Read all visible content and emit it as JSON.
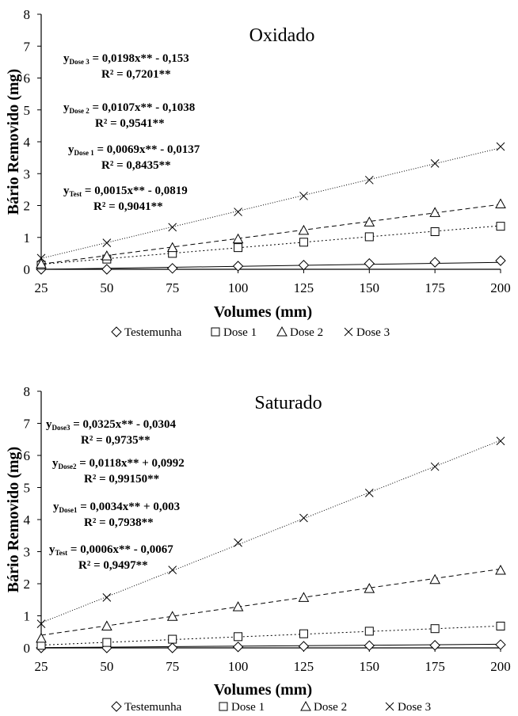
{
  "chart_data": [
    {
      "type": "line",
      "title": "Oxidado",
      "xlabel": "Volumes (mm)",
      "ylabel": "Bário Removido (mg)",
      "x": [
        25,
        50,
        75,
        100,
        125,
        150,
        175,
        200
      ],
      "ylim": [
        0,
        8
      ],
      "yticks": [
        "0",
        "1",
        "2",
        "3",
        "4",
        "5",
        "6",
        "7",
        "8"
      ],
      "xticks": [
        "25",
        "50",
        "75",
        "100",
        "125",
        "150",
        "175",
        "200"
      ],
      "series": [
        {
          "name": "Testemunha",
          "marker": "diamond",
          "dash": "",
          "values": [
            0.0,
            0.0,
            0.03,
            0.1,
            0.13,
            0.18,
            0.22,
            0.27
          ],
          "fit": [
            0.0015,
            -0.0819
          ]
        },
        {
          "name": "Dose 1",
          "marker": "square",
          "dash": "2,3",
          "values": [
            0.13,
            0.32,
            0.5,
            0.68,
            0.85,
            1.02,
            1.18,
            1.35
          ],
          "fit": [
            0.0069,
            -0.0137
          ]
        },
        {
          "name": "Dose 2",
          "marker": "triangle",
          "dash": "6,4",
          "values": [
            0.17,
            0.42,
            0.68,
            0.95,
            1.22,
            1.48,
            1.78,
            2.05
          ],
          "fit": [
            0.0107,
            -0.1038
          ]
        },
        {
          "name": "Dose 3",
          "marker": "x",
          "dash": "1,2",
          "values": [
            0.35,
            0.83,
            1.32,
            1.8,
            2.3,
            2.8,
            3.32,
            3.85
          ],
          "fit": [
            0.0198,
            -0.153
          ]
        }
      ],
      "equations": [
        {
          "sub": "Dose 3",
          "eq": " = 0,0198x** - 0,153",
          "r2": "R² = 0,7201**"
        },
        {
          "sub": "Dose 2",
          "eq": " = 0,0107x** - 0,1038",
          "r2": "R² = 0,9541**"
        },
        {
          "sub": "Dose 1",
          "eq": " = 0,0069x** - 0,0137",
          "r2": "R² = 0,8435**"
        },
        {
          "sub": "Test",
          "eq": " = 0,0015x** - 0,0819",
          "r2": "R² = 0,9041**"
        }
      ],
      "legend": [
        "Testemunha",
        "Dose 1",
        "Dose 2",
        "Dose 3"
      ],
      "grid": false,
      "legend_position": "bottom"
    },
    {
      "type": "line",
      "title": "Saturado",
      "xlabel": "Volumes (mm)",
      "ylabel": "Bário Removido (mg)",
      "x": [
        25,
        50,
        75,
        100,
        125,
        150,
        175,
        200
      ],
      "ylim": [
        0,
        8
      ],
      "yticks": [
        "0",
        "1",
        "2",
        "3",
        "4",
        "5",
        "6",
        "7",
        "8"
      ],
      "xticks": [
        "25",
        "50",
        "75",
        "100",
        "125",
        "150",
        "175",
        "200"
      ],
      "series": [
        {
          "name": "Testemunha",
          "marker": "diamond",
          "dash": "",
          "values": [
            0.0,
            0.0,
            0.0,
            0.03,
            0.05,
            0.07,
            0.08,
            0.1
          ],
          "fit": [
            0.0006,
            -0.0067
          ]
        },
        {
          "name": "Dose 1",
          "marker": "square",
          "dash": "2,3",
          "values": [
            0.08,
            0.17,
            0.27,
            0.35,
            0.44,
            0.52,
            0.6,
            0.68
          ],
          "fit": [
            0.0034,
            0.003
          ]
        },
        {
          "name": "Dose 2",
          "marker": "triangle",
          "dash": "6,4",
          "values": [
            0.3,
            0.68,
            0.98,
            1.28,
            1.57,
            1.85,
            2.13,
            2.42
          ],
          "fit": [
            0.0118,
            0.0992
          ]
        },
        {
          "name": "Dose 3",
          "marker": "x",
          "dash": "1,2",
          "values": [
            0.75,
            1.57,
            2.43,
            3.28,
            4.05,
            4.83,
            5.65,
            6.45
          ],
          "fit": [
            0.0325,
            -0.0304
          ]
        }
      ],
      "equations": [
        {
          "sub": "Dose3",
          "eq": " = 0,0325x** - 0,0304",
          "r2": "R² = 0,9735**"
        },
        {
          "sub": "Dose2",
          "eq": " = 0,0118x** + 0,0992",
          "r2": "R² = 0,99150**"
        },
        {
          "sub": "Dose1",
          "eq": " = 0,0034x** + 0,003",
          "r2": "R² = 0,7938**"
        },
        {
          "sub": "Test",
          "eq": " = 0,0006x** - 0,0067",
          "r2": "R² = 0,9497**"
        }
      ],
      "legend": [
        "Testemunha",
        "Dose 1",
        "Dose 2",
        "Dose 3"
      ],
      "grid": false,
      "legend_position": "bottom"
    }
  ]
}
